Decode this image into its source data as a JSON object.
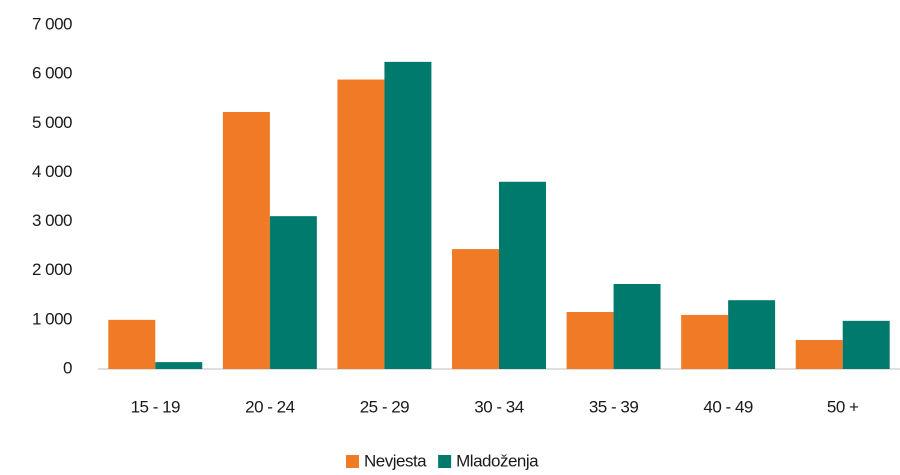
{
  "chart_data": {
    "type": "bar",
    "categories": [
      "15 - 19",
      "20 - 24",
      "25 - 29",
      "30 - 34",
      "35 - 39",
      "40 - 49",
      "50 +"
    ],
    "series": [
      {
        "name": "Nevjesta",
        "color": "#f07a25",
        "values": [
          1000,
          5230,
          5890,
          2440,
          1160,
          1100,
          590
        ]
      },
      {
        "name": "Mladoženja",
        "color": "#007a6c",
        "values": [
          140,
          3110,
          6250,
          3810,
          1730,
          1400,
          980
        ]
      }
    ],
    "ylim": [
      0,
      7000
    ],
    "yticks": [
      0,
      {
        "value": 1000,
        "label": "1 000"
      },
      {
        "value": 2000,
        "label": "2 000"
      },
      {
        "value": 3000,
        "label": "3 000"
      },
      {
        "value": 4000,
        "label": "4 000"
      },
      {
        "value": 5000,
        "label": "5 000"
      },
      {
        "value": 6000,
        "label": "6 000"
      },
      {
        "value": 7000,
        "label": "7 000"
      }
    ],
    "grid": false,
    "legend": "bottom"
  }
}
